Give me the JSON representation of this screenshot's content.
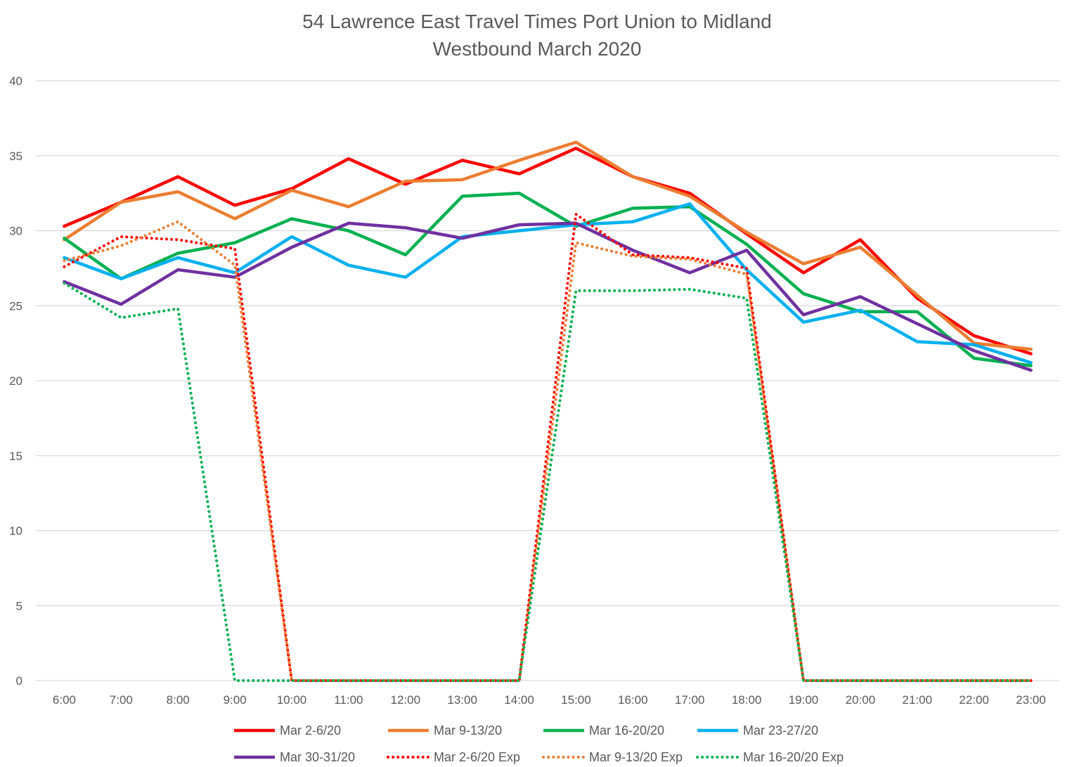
{
  "chart_data": {
    "type": "line",
    "title": "54 Lawrence East Travel Times Port Union to Midland",
    "subtitle": "Westbound  March 2020",
    "xlabel": "",
    "ylabel": "",
    "ylim": [
      0,
      40
    ],
    "yticks": [
      0,
      5,
      10,
      15,
      20,
      25,
      30,
      35,
      40
    ],
    "grid": true,
    "legend_position": "bottom",
    "categories": [
      "6:00",
      "7:00",
      "8:00",
      "9:00",
      "10:00",
      "11:00",
      "12:00",
      "13:00",
      "14:00",
      "15:00",
      "16:00",
      "17:00",
      "18:00",
      "19:00",
      "20:00",
      "21:00",
      "22:00",
      "23:00"
    ],
    "series": [
      {
        "name": "Mar 2-6/20",
        "style": "solid",
        "color": "#ff0000",
        "values": [
          30.3,
          31.9,
          33.6,
          31.7,
          32.8,
          34.8,
          33.1,
          34.7,
          33.8,
          35.5,
          33.6,
          32.5,
          29.8,
          27.2,
          29.4,
          25.5,
          23.0,
          21.8
        ]
      },
      {
        "name": "Mar 9-13/20",
        "style": "solid",
        "color": "#ed7d31",
        "values": [
          29.4,
          31.9,
          32.6,
          30.8,
          32.7,
          31.6,
          33.3,
          33.4,
          34.7,
          35.9,
          33.6,
          32.3,
          29.9,
          27.8,
          28.9,
          25.7,
          22.5,
          22.1
        ]
      },
      {
        "name": "Mar 16-20/20",
        "style": "solid",
        "color": "#00b050",
        "values": [
          29.5,
          26.8,
          28.5,
          29.2,
          30.8,
          30.0,
          28.4,
          32.3,
          32.5,
          30.3,
          31.5,
          31.6,
          29.1,
          25.8,
          24.6,
          24.6,
          21.5,
          21.0
        ]
      },
      {
        "name": "Mar 23-27/20",
        "style": "solid",
        "color": "#00b0f0",
        "values": [
          28.2,
          26.8,
          28.2,
          27.2,
          29.6,
          27.7,
          26.9,
          29.6,
          30.0,
          30.4,
          30.6,
          31.8,
          27.4,
          23.9,
          24.7,
          22.6,
          22.4,
          21.2
        ]
      },
      {
        "name": "Mar 30-31/20",
        "style": "solid",
        "color": "#7030a0",
        "values": [
          26.6,
          25.1,
          27.4,
          26.9,
          28.9,
          30.5,
          30.2,
          29.5,
          30.4,
          30.5,
          28.7,
          27.2,
          28.7,
          24.4,
          25.6,
          23.8,
          22.0,
          20.7
        ]
      },
      {
        "name": "Mar 2-6/20 Exp",
        "style": "dotted",
        "color": "#ff0000",
        "values": [
          27.6,
          29.6,
          29.4,
          28.8,
          0,
          0,
          0,
          0,
          0,
          31.1,
          28.4,
          28.2,
          27.5,
          0,
          0,
          0,
          0,
          0
        ]
      },
      {
        "name": "Mar 9-13/20 Exp",
        "style": "dotted",
        "color": "#ed7d31",
        "values": [
          28.0,
          29.0,
          30.6,
          27.7,
          0,
          0,
          0,
          0,
          0,
          29.2,
          28.3,
          28.1,
          27.1,
          0,
          0,
          0,
          0,
          0
        ]
      },
      {
        "name": "Mar 16-20/20 Exp",
        "style": "dotted",
        "color": "#00b050",
        "values": [
          26.5,
          24.2,
          24.8,
          0,
          0,
          0,
          0,
          0,
          0,
          26.0,
          26.0,
          26.1,
          25.5,
          0,
          0,
          0,
          0,
          0
        ]
      }
    ]
  }
}
